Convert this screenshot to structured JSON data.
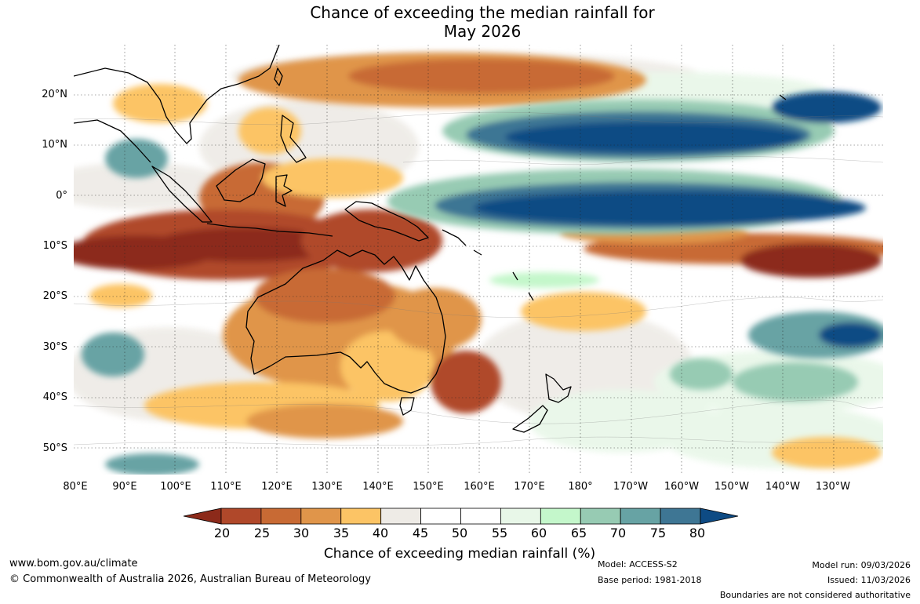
{
  "title": {
    "line1": "Chance of exceeding the median rainfall for",
    "line2": "May 2026"
  },
  "map": {
    "lat_labels": [
      "20°N",
      "10°N",
      "0°",
      "10°S",
      "20°S",
      "30°S",
      "40°S",
      "50°S"
    ],
    "lon_labels": [
      "80°E",
      "90°E",
      "100°E",
      "110°E",
      "120°E",
      "130°E",
      "140°E",
      "150°E",
      "160°E",
      "170°E",
      "180°",
      "170°W",
      "160°W",
      "150°W",
      "140°W",
      "130°W"
    ]
  },
  "colorbar": {
    "ticks": [
      "20",
      "25",
      "30",
      "35",
      "40",
      "45",
      "50",
      "55",
      "60",
      "65",
      "70",
      "75",
      "80"
    ],
    "colors": [
      "#8c2a1a",
      "#b0482a",
      "#c86a34",
      "#e0954a",
      "#fcc465",
      "#eeebe6",
      "#ffffff",
      "#ffffff",
      "#e8f7e8",
      "#c4f7cb",
      "#97cbb3",
      "#67a3a4",
      "#3e7694",
      "#0e4b84"
    ],
    "title": "Chance of exceeding median rainfall (%)"
  },
  "footer": {
    "website": "www.bom.gov.au/climate",
    "copyright": "© Commonwealth of Australia 2026, Australian Bureau of Meteorology",
    "model": "Model: ACCESS-S2",
    "base_period": "Base period: 1981-2018",
    "model_run": "Model run: 09/03/2026",
    "issued": "Issued: 11/03/2026",
    "disclaimer": "Boundaries are not considered authoritative"
  }
}
